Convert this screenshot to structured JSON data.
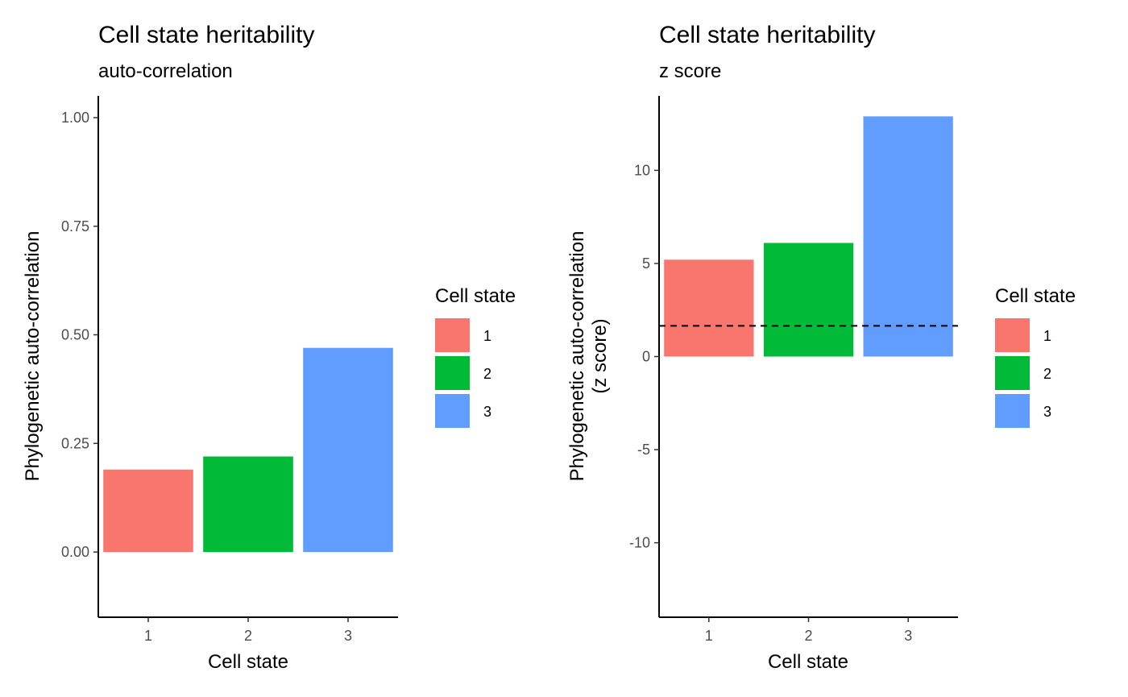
{
  "chart_data": [
    {
      "type": "bar",
      "title": "Cell state heritability",
      "subtitle": "auto-correlation",
      "xlabel": "Cell state",
      "ylabel": "Phylogenetic auto-correlation",
      "categories": [
        "1",
        "2",
        "3"
      ],
      "values": [
        0.19,
        0.22,
        0.47
      ],
      "colors": [
        "#F8766D",
        "#00BA38",
        "#619CFF"
      ],
      "ylim": [
        -0.15,
        1.05
      ],
      "yticks": [
        0.0,
        0.25,
        0.5,
        0.75,
        1.0
      ],
      "ytick_labels": [
        "0.00",
        "0.25",
        "0.50",
        "0.75",
        "1.00"
      ],
      "grid": false,
      "legend": {
        "title": "Cell state",
        "labels": [
          "1",
          "2",
          "3"
        ],
        "placement": "right"
      }
    },
    {
      "type": "bar",
      "title": "Cell state heritability",
      "subtitle": "z score",
      "xlabel": "Cell state",
      "ylabel": [
        "Phylogenetic auto-correlation",
        "(z score)"
      ],
      "categories": [
        "1",
        "2",
        "3"
      ],
      "values": [
        5.2,
        6.1,
        12.9
      ],
      "colors": [
        "#F8766D",
        "#00BA38",
        "#619CFF"
      ],
      "ylim": [
        -14,
        14
      ],
      "yticks": [
        -10,
        -5,
        0,
        5,
        10
      ],
      "ytick_labels": [
        "-10",
        "-5",
        "0",
        "5",
        "10"
      ],
      "reference_line": {
        "value": 1.65,
        "style": "dashed"
      },
      "grid": false,
      "legend": {
        "title": "Cell state",
        "labels": [
          "1",
          "2",
          "3"
        ],
        "placement": "right"
      }
    }
  ]
}
